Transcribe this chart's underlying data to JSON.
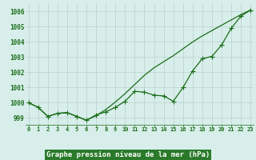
{
  "title": "Graphe pression niveau de la mer (hPa)",
  "x_values": [
    0,
    1,
    2,
    3,
    4,
    5,
    6,
    7,
    8,
    9,
    10,
    11,
    12,
    13,
    14,
    15,
    16,
    17,
    18,
    19,
    20,
    21,
    22,
    23
  ],
  "marker_y": [
    1000.0,
    999.7,
    999.1,
    999.3,
    999.35,
    999.1,
    998.85,
    999.2,
    999.4,
    999.7,
    1000.1,
    1000.75,
    1000.7,
    1000.5,
    1000.45,
    1000.1,
    1001.0,
    1002.1,
    1002.9,
    1003.05,
    1003.8,
    1004.9,
    1005.7,
    1006.1
  ],
  "smooth_y": [
    1000.0,
    999.7,
    999.1,
    999.3,
    999.35,
    999.1,
    998.85,
    999.15,
    999.55,
    1000.05,
    1000.6,
    1001.2,
    1001.8,
    1002.3,
    1002.7,
    1003.1,
    1003.55,
    1004.0,
    1004.4,
    1004.75,
    1005.1,
    1005.45,
    1005.8,
    1006.1
  ],
  "ylim_min": 998.55,
  "ylim_max": 1006.55,
  "yticks": [
    999,
    1000,
    1001,
    1002,
    1003,
    1004,
    1005,
    1006
  ],
  "xlim_min": -0.3,
  "xlim_max": 23.3,
  "line_color": "#1a6e1a",
  "bg_color": "#d8eeea",
  "grid_color": "#b8d0cc",
  "title_color": "#ffffff",
  "title_bg": "#2a7a2a",
  "marker_style": "+",
  "marker_size": 5,
  "linewidth": 0.9
}
